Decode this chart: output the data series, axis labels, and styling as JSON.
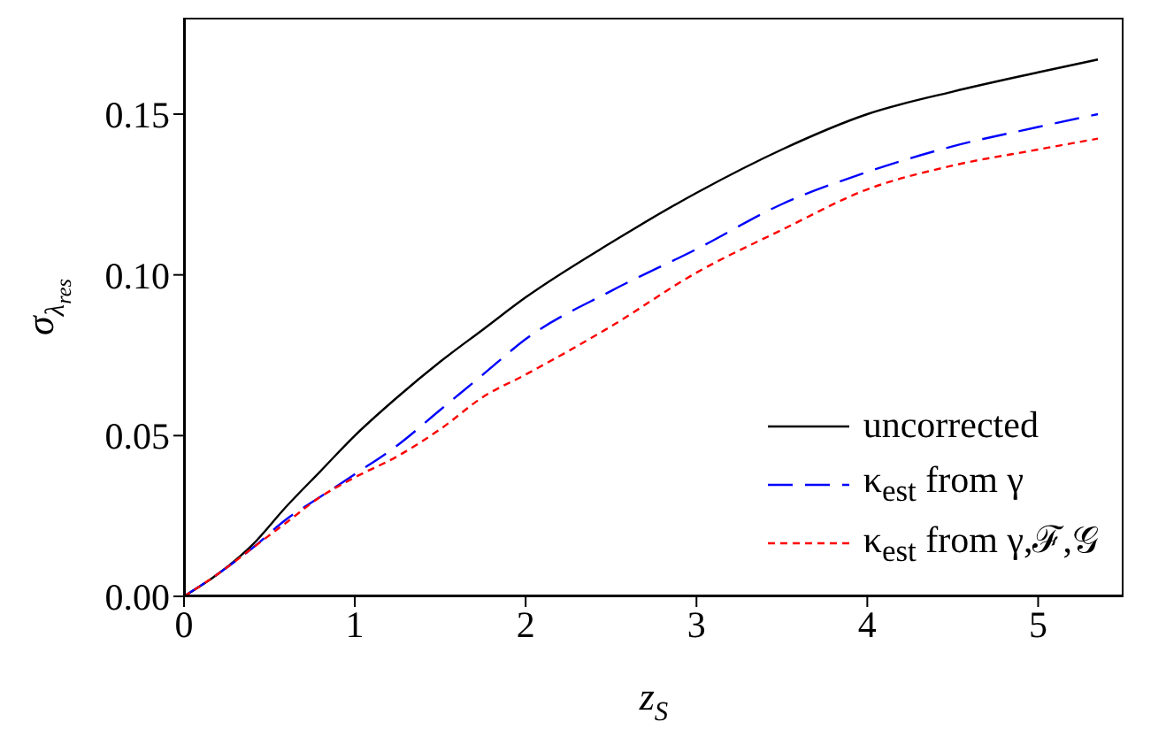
{
  "chart_data": {
    "type": "line",
    "xlabel": "z$_{S}$",
    "ylabel": "σ$_{λ}$$_{res}$",
    "x": [
      0,
      0.2,
      0.4,
      0.6,
      0.8,
      1,
      1.25,
      1.5,
      1.75,
      2,
      2.5,
      3,
      3.5,
      4,
      4.5,
      5,
      5.35
    ],
    "series": [
      {
        "name": "uncorrected",
        "color": "#000000",
        "line_style": "solid",
        "values": [
          0,
          0.007,
          0.016,
          0.028,
          0.039,
          0.05,
          0.062,
          0.073,
          0.083,
          0.093,
          0.11,
          0.1255,
          0.139,
          0.15,
          0.157,
          0.163,
          0.167
        ]
      },
      {
        "name": "κ$_{est}$ from γ",
        "color": "#0000ff",
        "line_style": "dashed",
        "values": [
          0,
          0.007,
          0.015,
          0.024,
          0.031,
          0.038,
          0.047,
          0.058,
          0.069,
          0.08,
          0.095,
          0.108,
          0.122,
          0.132,
          0.14,
          0.146,
          0.15
        ]
      },
      {
        "name": "κ$_{est}$ from γ,ℱ,𝒢",
        "color": "#ff0000",
        "line_style": "dotted",
        "values": [
          0,
          0.007,
          0.015,
          0.023,
          0.031,
          0.037,
          0.0436,
          0.052,
          0.062,
          0.069,
          0.084,
          0.1007,
          0.114,
          0.1266,
          0.134,
          0.139,
          0.1424
        ]
      }
    ],
    "xlim": [
      0,
      5.5
    ],
    "ylim": [
      0,
      0.18
    ],
    "xticks": [
      0,
      1,
      2,
      3,
      4,
      5
    ],
    "yticks": [
      {
        "value": 0,
        "label": "0.00"
      },
      {
        "value": 0.05,
        "label": "0.05"
      },
      {
        "value": 0.1,
        "label": "0.10"
      },
      {
        "value": 0.15,
        "label": "0.15"
      }
    ],
    "legend": "bottom right",
    "grid": false,
    "marker": "none"
  }
}
